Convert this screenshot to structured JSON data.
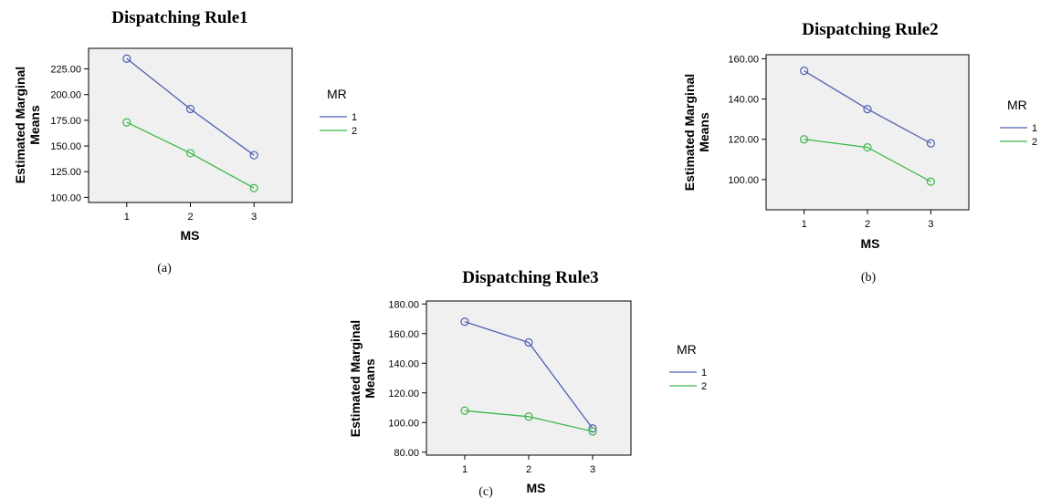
{
  "colors": {
    "series_1": "#4e5fb3",
    "series_2": "#3cb84a",
    "plot_bg": "#f0f0f0",
    "plot_border": "#000000"
  },
  "chart_data": [
    {
      "type": "line",
      "title": "Dispatching Rule1",
      "caption": "(a)",
      "xlabel": "MS",
      "ylabel_lines": [
        "Estimated Marginal",
        "Means"
      ],
      "x": [
        1,
        2,
        3
      ],
      "x_tick_labels": [
        "1",
        "2",
        "3"
      ],
      "xlim": [
        0.4,
        3.6
      ],
      "ylim": [
        95,
        245
      ],
      "y_ticks": [
        100,
        125,
        150,
        175,
        200,
        225
      ],
      "y_tick_labels": [
        "100.00",
        "125.00",
        "150.00",
        "175.00",
        "200.00",
        "225.00"
      ],
      "legend_title": "MR",
      "legend_placement": "right",
      "series": [
        {
          "name": "1",
          "values": [
            235,
            186,
            141
          ]
        },
        {
          "name": "2",
          "values": [
            173,
            143,
            109
          ]
        }
      ]
    },
    {
      "type": "line",
      "title": "Dispatching Rule2",
      "caption": "(b)",
      "xlabel": "MS",
      "ylabel_lines": [
        "Estimated Marginal",
        "Means"
      ],
      "x": [
        1,
        2,
        3
      ],
      "x_tick_labels": [
        "1",
        "2",
        "3"
      ],
      "xlim": [
        0.4,
        3.6
      ],
      "ylim": [
        85,
        162
      ],
      "y_ticks": [
        100,
        120,
        140,
        160
      ],
      "y_tick_labels": [
        "100.00",
        "120.00",
        "140.00",
        "160.00"
      ],
      "legend_title": "MR",
      "legend_placement": "right",
      "series": [
        {
          "name": "1",
          "values": [
            154,
            135,
            118
          ]
        },
        {
          "name": "2",
          "values": [
            120,
            116,
            99
          ]
        }
      ]
    },
    {
      "type": "line",
      "title": "Dispatching Rule3",
      "caption": "(c)",
      "xlabel": "MS",
      "ylabel_lines": [
        "Estimated Marginal",
        "Means"
      ],
      "x": [
        1,
        2,
        3
      ],
      "x_tick_labels": [
        "1",
        "2",
        "3"
      ],
      "xlim": [
        0.4,
        3.6
      ],
      "ylim": [
        78,
        182
      ],
      "y_ticks": [
        80,
        100,
        120,
        140,
        160,
        180
      ],
      "y_tick_labels": [
        "80.00",
        "100.00",
        "120.00",
        "140.00",
        "160.00",
        "180.00"
      ],
      "legend_title": "MR",
      "legend_placement": "right",
      "series": [
        {
          "name": "1",
          "values": [
            168,
            154,
            96
          ]
        },
        {
          "name": "2",
          "values": [
            108,
            104,
            94
          ]
        }
      ]
    }
  ]
}
